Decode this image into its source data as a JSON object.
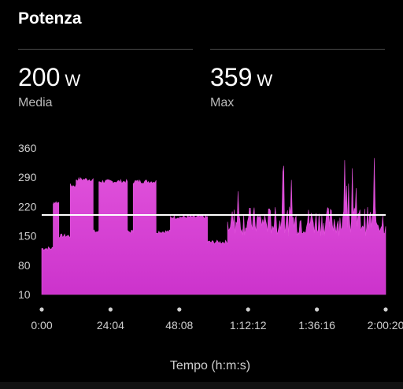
{
  "header": {
    "title": "Potenza"
  },
  "stats": [
    {
      "value": "200",
      "unit": "W",
      "label": "Media"
    },
    {
      "value": "359",
      "unit": "W",
      "label": "Max"
    }
  ],
  "colors": {
    "fill": "#cc33cc",
    "fill_light": "#e254dc",
    "avg_line": "#ffffff",
    "background": "#000000",
    "axis_text": "#cfcfcf"
  },
  "chart_data": {
    "type": "area",
    "xlabel": "Tempo (h:m:s)",
    "ylabel": "",
    "y_ticks": [
      "360",
      "290",
      "220",
      "150",
      "80",
      "10"
    ],
    "x_ticks": [
      "0:00",
      "24:04",
      "48:08",
      "1:12:12",
      "1:36:16",
      "2:00:20"
    ],
    "ylim": [
      10,
      360
    ],
    "xlim_seconds": [
      0,
      7220
    ],
    "average": 200,
    "max": 359,
    "segments": [
      {
        "from": "0:00",
        "to": "4:00",
        "approx_watts": 120
      },
      {
        "from": "4:00",
        "to": "6:00",
        "approx_watts": 230
      },
      {
        "from": "6:00",
        "to": "10:00",
        "approx_watts": 150
      },
      {
        "from": "10:00",
        "to": "12:00",
        "approx_watts": 270
      },
      {
        "from": "12:00",
        "to": "18:00",
        "approx_watts": 285
      },
      {
        "from": "18:00",
        "to": "20:00",
        "approx_watts": 160
      },
      {
        "from": "20:00",
        "to": "30:00",
        "approx_watts": 280
      },
      {
        "from": "30:00",
        "to": "32:00",
        "approx_watts": 160
      },
      {
        "from": "32:00",
        "to": "40:00",
        "approx_watts": 280
      },
      {
        "from": "40:00",
        "to": "45:00",
        "approx_watts": 160
      },
      {
        "from": "45:00",
        "to": "58:00",
        "approx_watts": 195
      },
      {
        "from": "58:00",
        "to": "1:05:00",
        "approx_watts": 135
      },
      {
        "from": "1:05:00",
        "to": "2:00:20",
        "approx_watts": 185
      }
    ]
  }
}
